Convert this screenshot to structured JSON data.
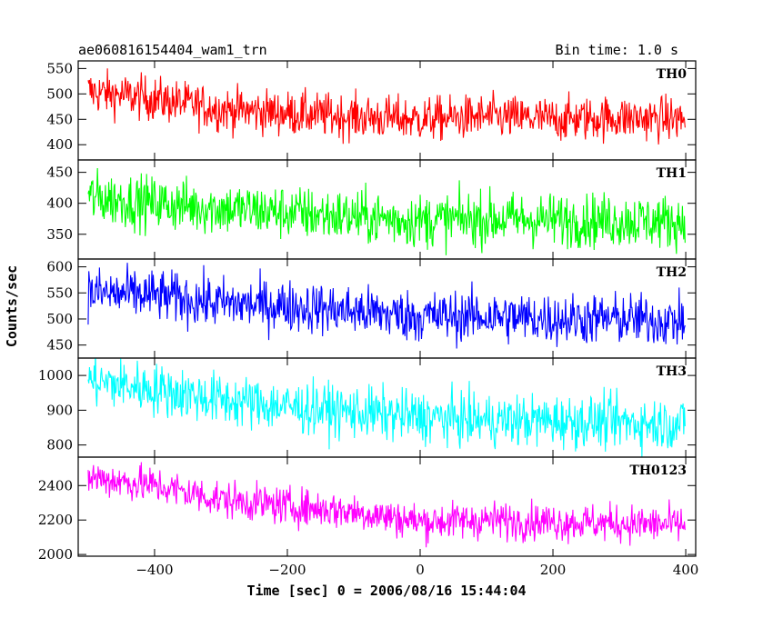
{
  "chart_data": {
    "type": "line",
    "title": "ae060816154404_wam1_trn",
    "bin_time_label": "Bin time: 1.0 s",
    "xlabel": "Time [sec] 0 = 2006/08/16 15:44:04",
    "ylabel": "Counts/sec",
    "xlim": [
      -515,
      415
    ],
    "x_ticks": [
      -400,
      -200,
      0,
      200,
      400
    ],
    "x_tick_labels": [
      "−400",
      "−200",
      "0",
      "200",
      "400"
    ],
    "x_start": -500,
    "x_end": 399,
    "grid": false,
    "panels": [
      {
        "name": "TH0",
        "color": "#ff0000",
        "ylim": [
          370,
          565
        ],
        "y_ticks": [
          400,
          450,
          500,
          550
        ],
        "trend": [
          [
            -500,
            505
          ],
          [
            -400,
            490
          ],
          [
            -300,
            470
          ],
          [
            -200,
            462
          ],
          [
            -100,
            455
          ],
          [
            0,
            450
          ],
          [
            100,
            455
          ],
          [
            200,
            450
          ],
          [
            300,
            453
          ],
          [
            399,
            450
          ]
        ],
        "noise": 22
      },
      {
        "name": "TH1",
        "color": "#00ff00",
        "ylim": [
          310,
          470
        ],
        "y_ticks": [
          350,
          400,
          450
        ],
        "trend": [
          [
            -500,
            410
          ],
          [
            -400,
            400
          ],
          [
            -300,
            392
          ],
          [
            -200,
            385
          ],
          [
            -100,
            378
          ],
          [
            0,
            372
          ],
          [
            100,
            375
          ],
          [
            200,
            373
          ],
          [
            300,
            372
          ],
          [
            399,
            370
          ]
        ],
        "noise": 22
      },
      {
        "name": "TH2",
        "color": "#0000ff",
        "ylim": [
          425,
          615
        ],
        "y_ticks": [
          450,
          500,
          550,
          600
        ],
        "trend": [
          [
            -500,
            550
          ],
          [
            -400,
            545
          ],
          [
            -300,
            530
          ],
          [
            -200,
            525
          ],
          [
            -100,
            515
          ],
          [
            0,
            505
          ],
          [
            100,
            505
          ],
          [
            200,
            500
          ],
          [
            300,
            500
          ],
          [
            399,
            495
          ]
        ],
        "noise": 25
      },
      {
        "name": "TH3",
        "color": "#00ffff",
        "ylim": [
          765,
          1050
        ],
        "y_ticks": [
          800,
          900,
          1000
        ],
        "trend": [
          [
            -500,
            985
          ],
          [
            -400,
            960
          ],
          [
            -300,
            930
          ],
          [
            -200,
            910
          ],
          [
            -100,
            895
          ],
          [
            0,
            880
          ],
          [
            100,
            870
          ],
          [
            200,
            870
          ],
          [
            300,
            865
          ],
          [
            399,
            860
          ]
        ],
        "noise": 38
      },
      {
        "name": "TH0123",
        "color": "#ff00ff",
        "ylim": [
          1990,
          2565
        ],
        "y_ticks": [
          2000,
          2200,
          2400
        ],
        "trend": [
          [
            -500,
            2450
          ],
          [
            -400,
            2400
          ],
          [
            -300,
            2320
          ],
          [
            -200,
            2280
          ],
          [
            -100,
            2250
          ],
          [
            0,
            2190
          ],
          [
            100,
            2200
          ],
          [
            200,
            2190
          ],
          [
            300,
            2180
          ],
          [
            399,
            2170
          ]
        ],
        "noise": 55
      }
    ]
  }
}
